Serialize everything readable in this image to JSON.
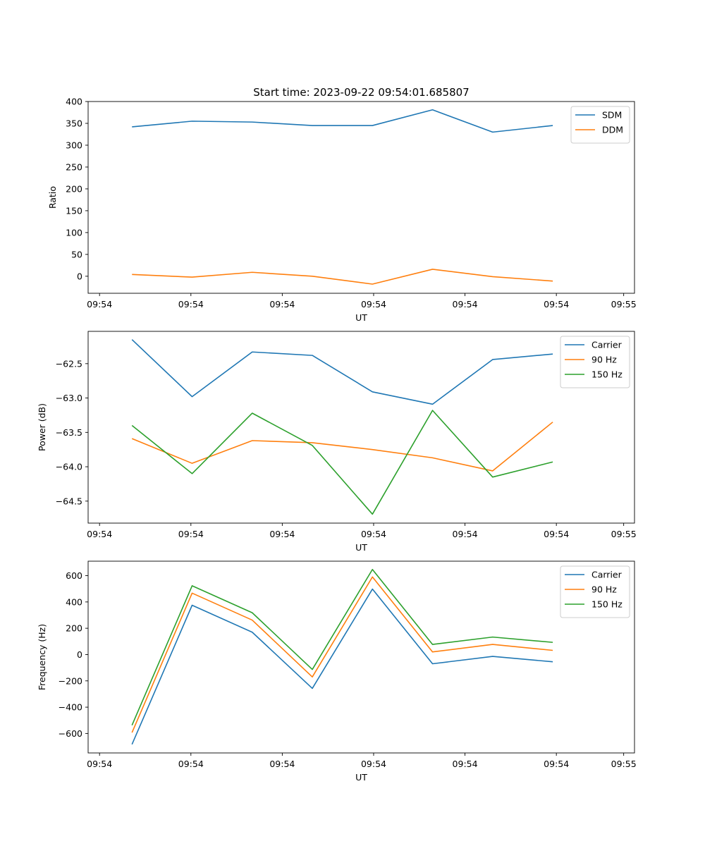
{
  "title": "Start time: 2023-09-22 09:54:01.685807",
  "colors": {
    "blue": "#1f77b4",
    "orange": "#ff7f0e",
    "green": "#2ca02c"
  },
  "chart_data": [
    {
      "type": "line",
      "title": "Start time: 2023-09-22 09:54:01.685807",
      "xlabel": "UT",
      "ylabel": "Ratio",
      "x": [
        1,
        2,
        3,
        4,
        5,
        6,
        7,
        8
      ],
      "xlim": [
        0.27,
        9.36
      ],
      "xticks": [
        {
          "x": 0.46,
          "label": "09:54"
        },
        {
          "x": 1.98,
          "label": "09:54"
        },
        {
          "x": 3.5,
          "label": "09:54"
        },
        {
          "x": 5.02,
          "label": "09:54"
        },
        {
          "x": 6.54,
          "label": "09:54"
        },
        {
          "x": 8.06,
          "label": "09:54"
        },
        {
          "x": 9.18,
          "label": "09:55"
        }
      ],
      "ylim": [
        -39,
        400
      ],
      "yticks": [
        0,
        50,
        100,
        150,
        200,
        250,
        300,
        350,
        400
      ],
      "legend_loc": "upper right",
      "series": [
        {
          "name": "SDM",
          "color": "#1f77b4",
          "values": [
            342,
            355,
            353,
            345,
            345,
            381,
            330,
            345
          ]
        },
        {
          "name": "DDM",
          "color": "#ff7f0e",
          "values": [
            4,
            -2,
            9,
            0,
            -18,
            16,
            -1,
            -11
          ]
        }
      ]
    },
    {
      "type": "line",
      "xlabel": "UT",
      "ylabel": "Power (dB)",
      "x": [
        1,
        2,
        3,
        4,
        5,
        6,
        7,
        8
      ],
      "xlim": [
        0.27,
        9.36
      ],
      "xticks": [
        {
          "x": 0.46,
          "label": "09:54"
        },
        {
          "x": 1.98,
          "label": "09:54"
        },
        {
          "x": 3.5,
          "label": "09:54"
        },
        {
          "x": 5.02,
          "label": "09:54"
        },
        {
          "x": 6.54,
          "label": "09:54"
        },
        {
          "x": 8.06,
          "label": "09:54"
        },
        {
          "x": 9.18,
          "label": "09:55"
        }
      ],
      "ylim": [
        -64.82,
        -62.03
      ],
      "yticks": [
        -62.5,
        -63.0,
        -63.5,
        -64.0,
        -64.5
      ],
      "ytick_labels": [
        "−62.5",
        "−63.0",
        "−63.5",
        "−64.0",
        "−64.5"
      ],
      "legend_loc": "upper right",
      "series": [
        {
          "name": "Carrier",
          "color": "#1f77b4",
          "values": [
            -62.15,
            -62.98,
            -62.33,
            -62.38,
            -62.91,
            -63.09,
            -62.44,
            -62.36
          ]
        },
        {
          "name": "90 Hz",
          "color": "#ff7f0e",
          "values": [
            -63.59,
            -63.95,
            -63.62,
            -63.65,
            -63.75,
            -63.87,
            -64.06,
            -63.35
          ]
        },
        {
          "name": "150 Hz",
          "color": "#2ca02c",
          "values": [
            -63.4,
            -64.1,
            -63.22,
            -63.69,
            -64.69,
            -63.18,
            -64.15,
            -63.93
          ]
        }
      ]
    },
    {
      "type": "line",
      "xlabel": "UT",
      "ylabel": "Frequency (Hz)",
      "x": [
        1,
        2,
        3,
        4,
        5,
        6,
        7,
        8
      ],
      "xlim": [
        0.27,
        9.36
      ],
      "xticks": [
        {
          "x": 0.46,
          "label": "09:54"
        },
        {
          "x": 1.98,
          "label": "09:54"
        },
        {
          "x": 3.5,
          "label": "09:54"
        },
        {
          "x": 5.02,
          "label": "09:54"
        },
        {
          "x": 6.54,
          "label": "09:54"
        },
        {
          "x": 8.06,
          "label": "09:54"
        },
        {
          "x": 9.18,
          "label": "09:55"
        }
      ],
      "ylim": [
        -748,
        710
      ],
      "yticks": [
        -600,
        -400,
        -200,
        0,
        200,
        400,
        600
      ],
      "ytick_labels": [
        "−600",
        "−400",
        "−200",
        "0",
        "200",
        "400",
        "600"
      ],
      "legend_loc": "upper right",
      "series": [
        {
          "name": "Carrier",
          "color": "#1f77b4",
          "values": [
            -683,
            375,
            170,
            -257,
            498,
            -70,
            -14,
            -55
          ]
        },
        {
          "name": "90 Hz",
          "color": "#ff7f0e",
          "values": [
            -593,
            467,
            262,
            -170,
            590,
            20,
            77,
            32
          ]
        },
        {
          "name": "150 Hz",
          "color": "#2ca02c",
          "values": [
            -537,
            523,
            318,
            -113,
            647,
            77,
            133,
            93
          ]
        }
      ]
    }
  ]
}
